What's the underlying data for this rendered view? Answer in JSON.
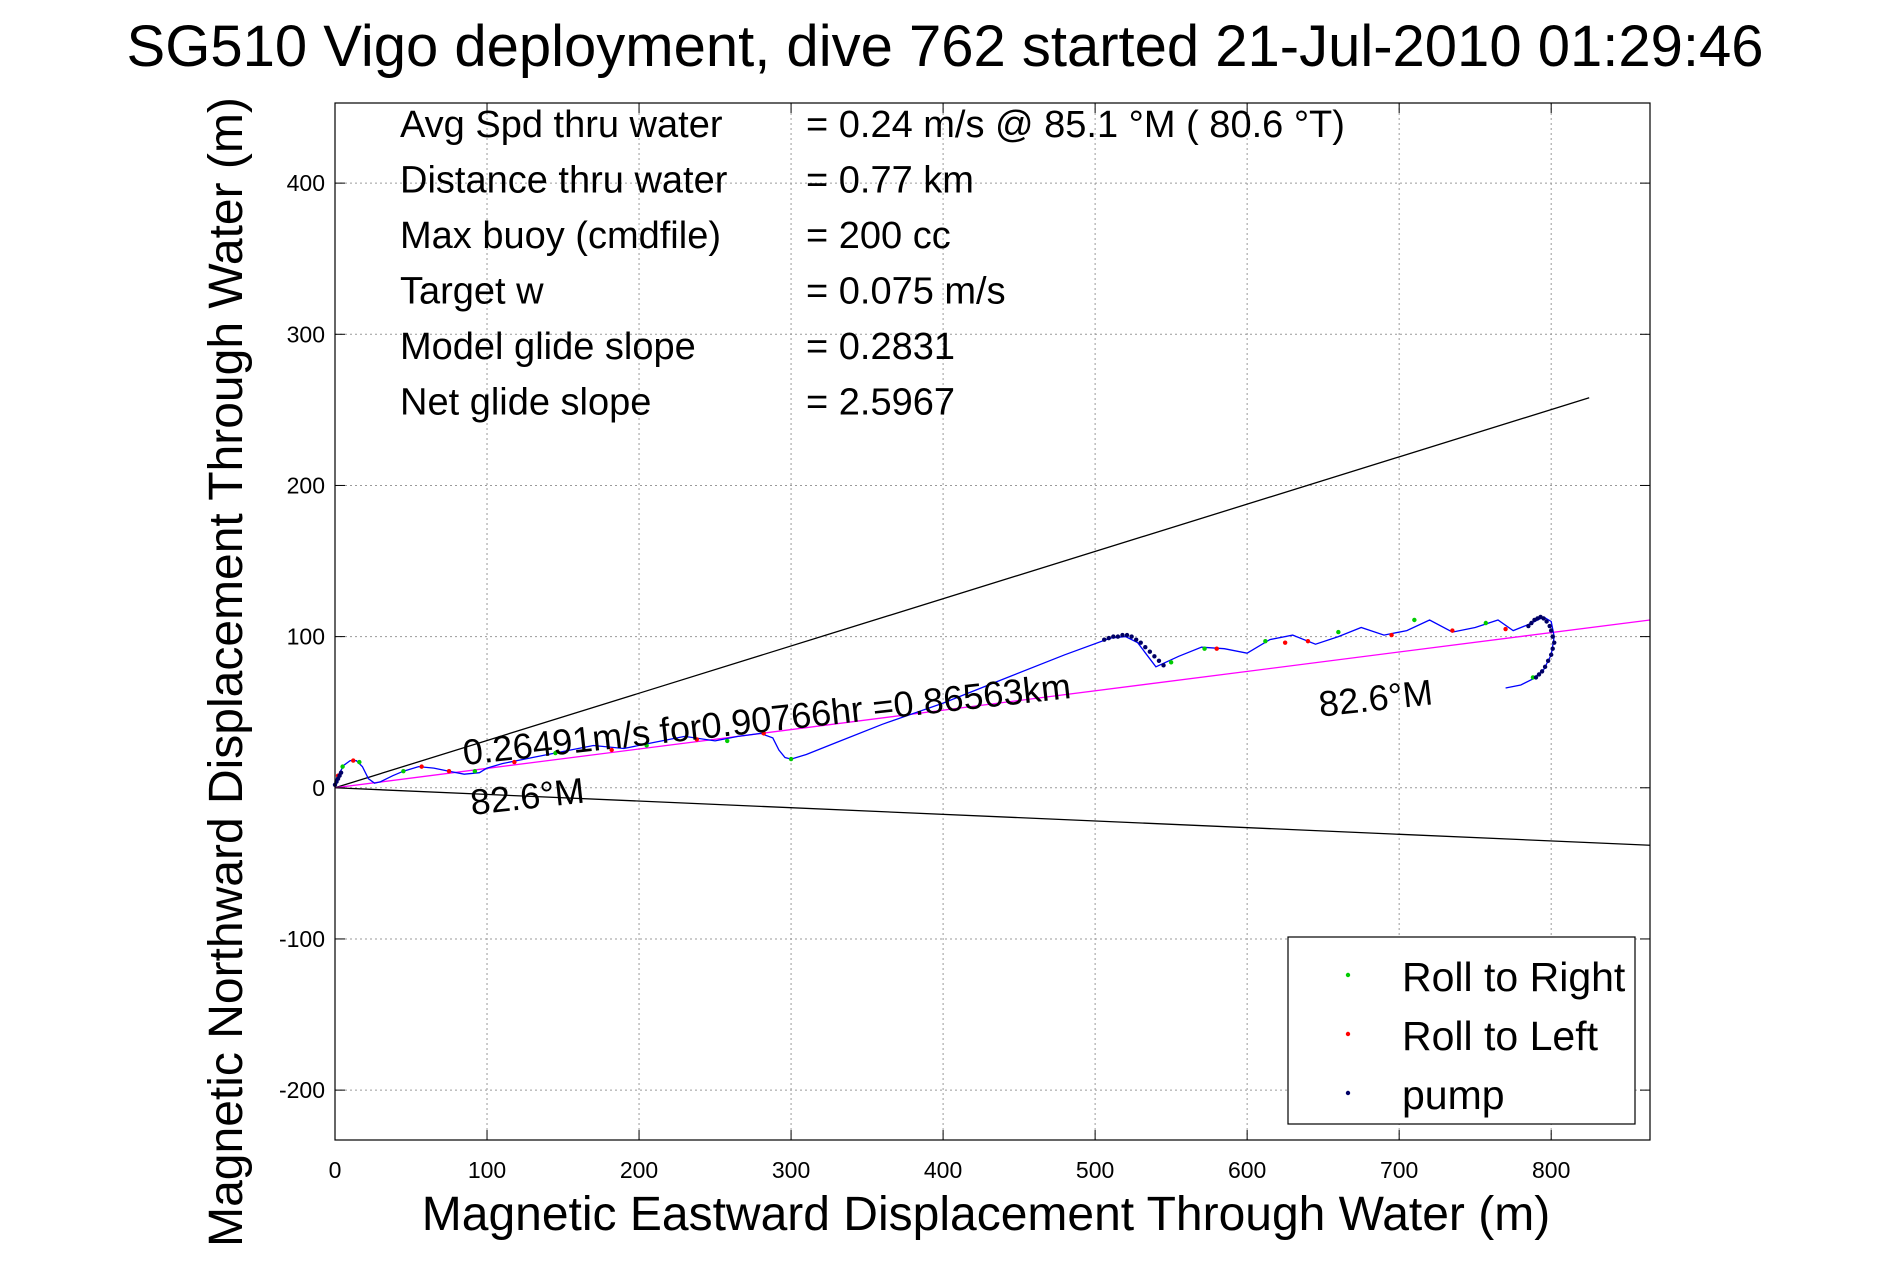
{
  "chart_data": {
    "type": "line",
    "title": "SG510 Vigo deployment, dive 762 started 21-Jul-2010 01:29:46",
    "xlabel": "Magnetic Eastward Displacement Through Water (m)",
    "ylabel": "Magnetic Northward Displacement Through Water (m)",
    "xlim": [
      0,
      865
    ],
    "ylim": [
      -233,
      453
    ],
    "xticks": [
      0,
      100,
      200,
      300,
      400,
      500,
      600,
      700,
      800
    ],
    "yticks": [
      -200,
      -100,
      0,
      100,
      200,
      300,
      400
    ],
    "xtick_labels": [
      "0",
      "100",
      "200",
      "300",
      "400",
      "500",
      "600",
      "700",
      "800"
    ],
    "ytick_labels": [
      "-200",
      "-100",
      "0",
      "100",
      "200",
      "300",
      "400"
    ],
    "grid": true,
    "legend_placement": "bottom-right",
    "stats": [
      {
        "label": "Avg Spd thru water",
        "value": "=  0.24 m/s @  85.1 °M ( 80.6 °T)"
      },
      {
        "label": "Distance thru water",
        "value": "=  0.77 km"
      },
      {
        "label": "Max buoy (cmdfile)",
        "value": "= 200 cc"
      },
      {
        "label": "Target w",
        "value": "= 0.075 m/s"
      },
      {
        "label": "Model glide slope",
        "value": "= 0.2831"
      },
      {
        "label": "Net glide slope",
        "value": "= 2.5967"
      }
    ],
    "annotations": [
      {
        "text": "0.26491m/s for0.90766hr =0.86563km",
        "x": 85,
        "y": 15,
        "angle": -6.3
      },
      {
        "text": "82.6°M",
        "x": 90,
        "y": -18,
        "angle": -6.3
      },
      {
        "text": "82.6°M",
        "x": 648,
        "y": 47,
        "angle": -6.3
      }
    ],
    "reference_lines": [
      {
        "name": "upper-bound",
        "color": "#000000",
        "x": [
          0,
          825
        ],
        "y": [
          0,
          258
        ]
      },
      {
        "name": "lower-bound",
        "color": "#000000",
        "x": [
          0,
          865
        ],
        "y": [
          0,
          -38
        ]
      },
      {
        "name": "mean-heading",
        "color": "#ff00ff",
        "x": [
          0,
          865
        ],
        "y": [
          0,
          111
        ]
      }
    ],
    "track": {
      "color": "#0000ff",
      "x": [
        0,
        3,
        6,
        10,
        14,
        18,
        22,
        26,
        30,
        34,
        38,
        45,
        55,
        65,
        75,
        85,
        95,
        100,
        110,
        130,
        150,
        170,
        190,
        210,
        230,
        250,
        265,
        280,
        288,
        292,
        296,
        300,
        310,
        330,
        360,
        400,
        440,
        480,
        510,
        520,
        528,
        534,
        540,
        555,
        570,
        585,
        600,
        615,
        630,
        645,
        660,
        675,
        690,
        705,
        720,
        735,
        750,
        765,
        775,
        785,
        795,
        800,
        802,
        800,
        795,
        788,
        780,
        770
      ],
      "y": [
        4,
        10,
        15,
        18,
        18,
        14,
        6,
        3,
        4,
        6,
        8,
        11,
        14,
        13,
        11,
        9,
        10,
        13,
        16,
        20,
        24,
        28,
        26,
        30,
        34,
        31,
        34,
        36,
        33,
        25,
        20,
        19,
        22,
        30,
        42,
        56,
        72,
        88,
        99,
        100,
        96,
        88,
        80,
        87,
        93,
        92,
        89,
        98,
        101,
        95,
        100,
        106,
        101,
        104,
        111,
        103,
        106,
        111,
        104,
        108,
        113,
        110,
        100,
        88,
        78,
        72,
        68,
        66
      ],
      "marker_size": 2.2
    },
    "series": [
      {
        "name": "Roll to Right",
        "color": "#00cc00",
        "x": [
          5,
          16,
          45,
          92,
          145,
          205,
          258,
          300,
          550,
          572,
          612,
          660,
          710,
          757,
          788
        ],
        "y": [
          14,
          17,
          11,
          11,
          23,
          28,
          31,
          19,
          83,
          92,
          97,
          103,
          111,
          109,
          73
        ]
      },
      {
        "name": "Roll to Left",
        "color": "#ff0000",
        "x": [
          2,
          12,
          57,
          75,
          118,
          182,
          238,
          282,
          580,
          625,
          640,
          695,
          735,
          770
        ],
        "y": [
          8,
          18,
          14,
          11,
          17,
          25,
          32,
          36,
          92,
          96,
          97,
          101,
          104,
          105
        ]
      },
      {
        "name": "pump",
        "color": "#000066",
        "x": [
          0,
          1,
          2,
          3,
          4,
          506,
          509,
          512,
          515,
          518,
          521,
          524,
          527,
          530,
          533,
          536,
          539,
          542,
          545,
          785,
          787,
          789,
          791,
          793,
          795,
          797,
          799,
          800,
          801,
          802,
          801,
          800,
          798,
          796,
          794,
          792,
          790
        ],
        "y": [
          2,
          4,
          6,
          8,
          10,
          98,
          99,
          100,
          100,
          101,
          101,
          100,
          98,
          96,
          93,
          90,
          87,
          84,
          81,
          107,
          109,
          111,
          112,
          113,
          112,
          110,
          107,
          104,
          100,
          96,
          92,
          88,
          84,
          80,
          77,
          75,
          73
        ]
      }
    ]
  }
}
